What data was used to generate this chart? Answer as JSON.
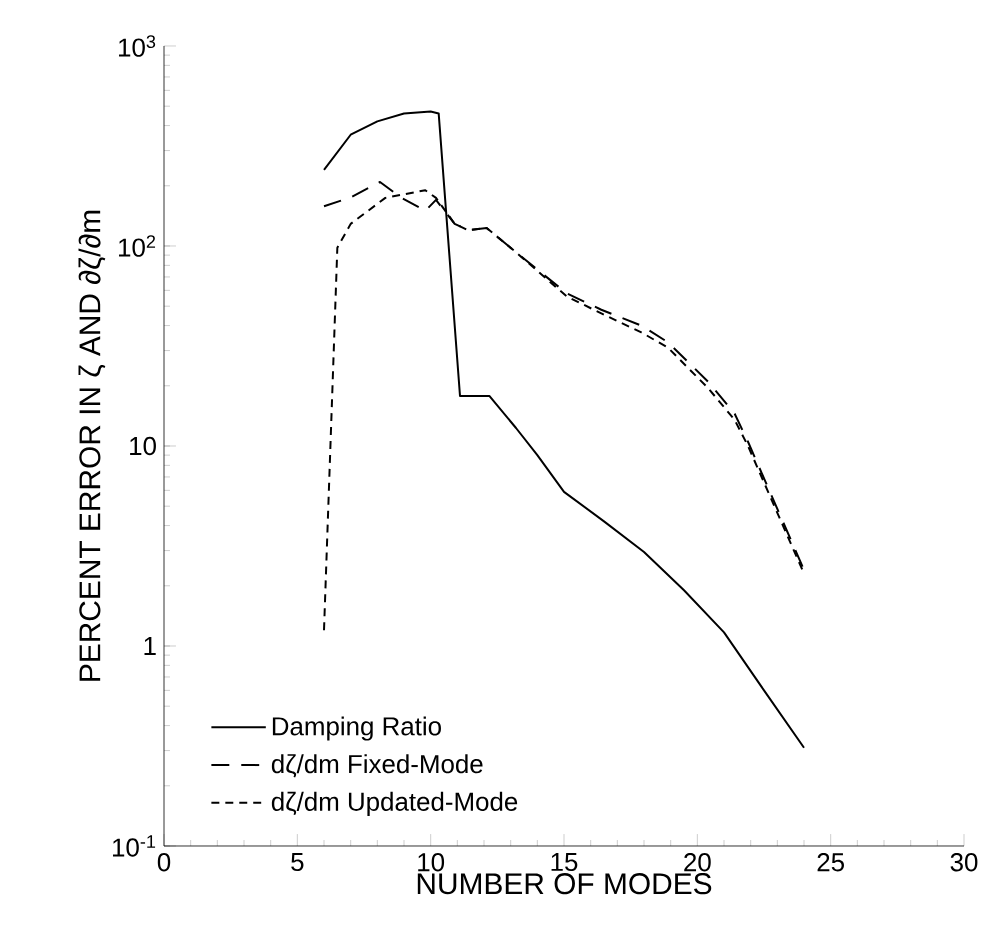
{
  "chart_data": {
    "type": "line",
    "xlabel": "NUMBER OF MODES",
    "ylabel": "PERCENT ERROR IN ζ AND ∂ζ/∂m",
    "log": "y",
    "xlim": [
      0,
      30
    ],
    "xticks": [
      0,
      5,
      10,
      15,
      20,
      25,
      30
    ],
    "ylim": [
      0.1,
      1000
    ],
    "yticks": [
      {
        "value": 0.1,
        "label": "10$^{-1}$"
      },
      1,
      10,
      {
        "value": 100,
        "label": "10$^{2}$"
      },
      {
        "value": 1000,
        "label": "10$^{3}$"
      }
    ],
    "legend": "bottom left",
    "series": [
      {
        "name": "Damping Ratio",
        "color": "#000000",
        "line_style": "solid",
        "x": [
          6,
          7,
          8,
          9,
          10,
          10.3,
          11.1,
          12.2,
          13.2,
          14,
          15,
          16.5,
          18,
          19.5,
          21,
          22.5,
          24
        ],
        "values": [
          240,
          360,
          420,
          460,
          470,
          460,
          17.8,
          17.8,
          12.3,
          9,
          5.9,
          4.2,
          2.95,
          1.9,
          1.17,
          0.6,
          0.31
        ]
      },
      {
        "name": "dζ/dm Fixed-Mode",
        "color": "#000000",
        "line_style": "longdashed",
        "x": [
          6,
          7,
          8.1,
          8.9,
          9.8,
          10.2,
          10.9,
          11.4,
          12.1,
          13.2,
          15.1,
          16.4,
          17.9,
          18.9,
          20.4,
          21.4,
          21.9,
          24
        ],
        "values": [
          158,
          175,
          209,
          174,
          150,
          170,
          129,
          120,
          123,
          93,
          58,
          48,
          40,
          33,
          21,
          14.5,
          10.5,
          2.4
        ]
      },
      {
        "name": "dζ/dm Updated-Mode",
        "color": "#000000",
        "line_style": "dashed",
        "x": [
          6,
          6.5,
          7,
          8.3,
          9.8,
          10.2,
          10.9,
          11.4,
          12.1,
          13.2,
          15.1,
          16.4,
          17.9,
          18.9,
          20.4,
          21.4,
          21.9,
          24
        ],
        "values": [
          1.2,
          98,
          129,
          174,
          190,
          174,
          129,
          120,
          123,
          93,
          56,
          46,
          37,
          31,
          19.5,
          13.5,
          10,
          2.3
        ]
      }
    ]
  }
}
